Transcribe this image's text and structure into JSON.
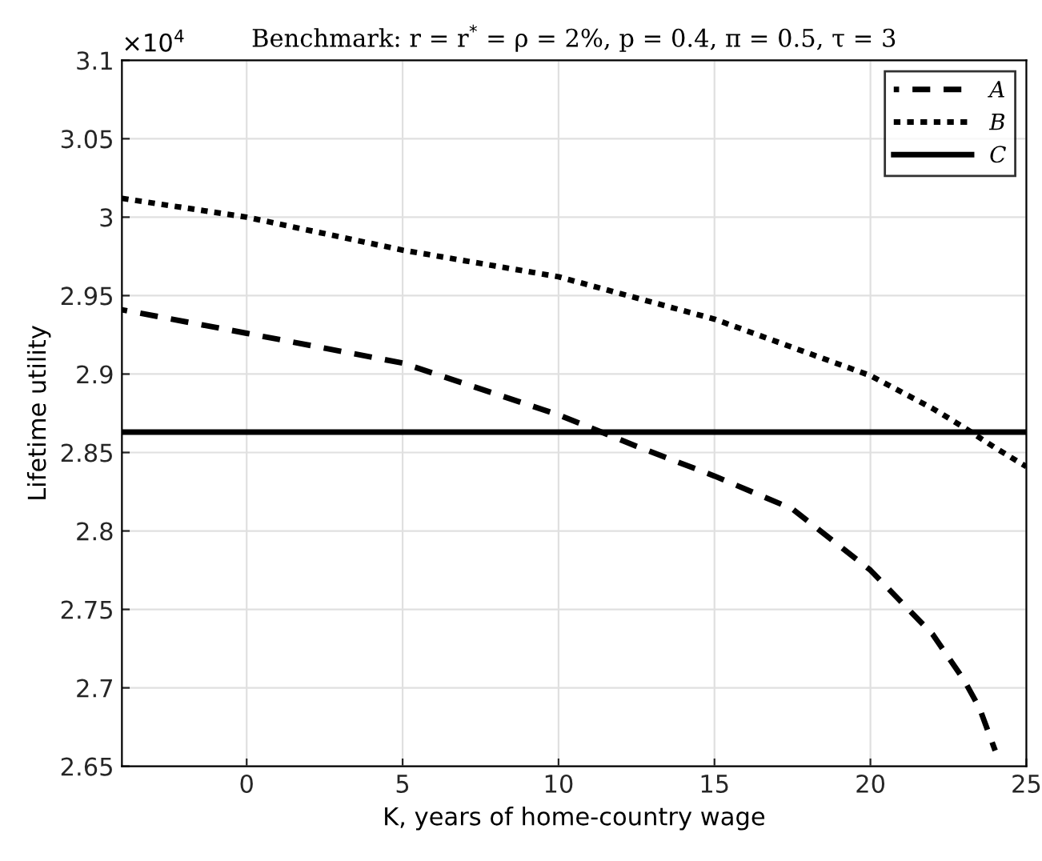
{
  "chart_data": {
    "type": "line",
    "title": "Benchmark: r = r$^{*}$ = ρ = 2%, p = 0.4, π = 0.5, τ = 3",
    "xlabel": "K, years of home-country wage",
    "ylabel": "Lifetime utility",
    "annotations": [
      "×10$^{4}$"
    ],
    "series": [
      {
        "name": "A",
        "color": "#000000",
        "line_style": "dashed",
        "x": [
          -4,
          0,
          5,
          10,
          12.5,
          15,
          17.5,
          20,
          22,
          23,
          23.5,
          24
        ],
        "values": [
          2.941,
          2.926,
          2.907,
          2.874,
          2.854,
          2.835,
          2.814,
          2.775,
          2.734,
          2.705,
          2.687,
          2.66
        ]
      },
      {
        "name": "B",
        "color": "#000000",
        "line_style": "dotted",
        "x": [
          -4,
          0,
          5,
          10,
          15,
          20,
          22,
          23,
          24,
          25
        ],
        "values": [
          3.012,
          3.0,
          2.979,
          2.962,
          2.935,
          2.899,
          2.878,
          2.866,
          2.853,
          2.841
        ]
      },
      {
        "name": "C",
        "color": "#000000",
        "line_style": "solid",
        "x": [
          -4,
          25
        ],
        "values": [
          2.863,
          2.863
        ]
      }
    ],
    "xlim": [
      -4,
      25
    ],
    "xticks": [
      0,
      5,
      10,
      15,
      20,
      25
    ],
    "ylim": [
      2.65,
      3.1
    ],
    "yticks": [
      2.65,
      2.7,
      2.75,
      2.8,
      2.85,
      2.9,
      2.95,
      {
        "value": 3,
        "label": "3"
      },
      3.05,
      3.1
    ],
    "grid": true,
    "legend": "top right"
  }
}
